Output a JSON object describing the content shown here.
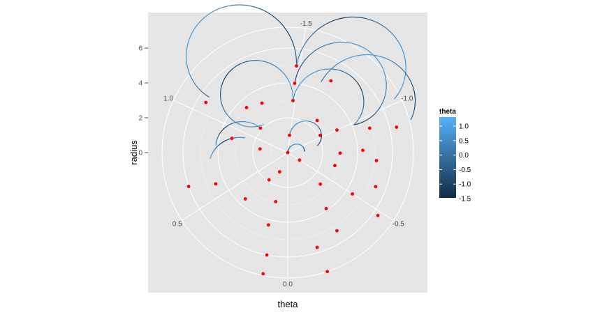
{
  "chart_data": {
    "type": "line",
    "coord": "polar",
    "xlabel": "theta",
    "ylabel": "radius",
    "radius_ticks": [
      "0",
      "2",
      "4",
      "6"
    ],
    "theta_ticks": [
      "-1.5",
      "-1.0",
      "-0.5",
      "0.0",
      "0.5",
      "1.0"
    ],
    "theta_range": [
      -1.57,
      1.57
    ],
    "radius_range": [
      0,
      7.5
    ],
    "grid": true,
    "legend": {
      "title": "theta",
      "placement": "right",
      "labels": [
        "1.0",
        "0.5",
        "0.0",
        "-0.5",
        "-1.0",
        "-1.5"
      ],
      "color_low": "#132B43",
      "color_high": "#56B1F7"
    },
    "colors": {
      "panel": "#e5e5e5",
      "grid": "#ffffff",
      "point": "#ff0000"
    },
    "spirals": [
      {
        "start_radius": 0.0,
        "start_theta": 0.0,
        "turn": "cw",
        "end_angle_deg": 170
      },
      {
        "start_radius": 1.0,
        "start_theta": -1.52,
        "turn": "cw",
        "end_angle_deg": 215
      },
      {
        "start_radius": 3.0,
        "start_theta": -1.52,
        "turn": "cw",
        "end_angle_deg": 215
      },
      {
        "start_radius": 3.0,
        "start_theta": -1.52,
        "turn": "ccw",
        "end_angle_deg": 295
      },
      {
        "start_radius": 5.0,
        "start_theta": -1.52,
        "turn": "cw",
        "end_angle_deg": 210
      },
      {
        "start_radius": 5.0,
        "start_theta": -1.52,
        "turn": "ccw",
        "end_angle_deg": 240
      },
      {
        "start_radius": 4.0,
        "start_theta": -1.52,
        "turn": "cw",
        "end_angle_deg": 250
      },
      {
        "start_radius": 4.5,
        "start_theta": -1.35,
        "turn": "cw",
        "end_angle_deg": 175
      },
      {
        "start_radius": 2.2,
        "start_theta": 1.15,
        "turn": "ccw",
        "end_angle_deg": 120
      },
      {
        "start_radius": 2.6,
        "start_theta": 0.95,
        "turn": "ccw",
        "end_angle_deg": 80
      }
    ],
    "points": [
      {
        "r": 0.0,
        "theta": 0.0
      },
      {
        "r": 1.0,
        "theta": -1.52
      },
      {
        "r": 3.0,
        "theta": -1.52
      },
      {
        "r": 4.0,
        "theta": -1.52
      },
      {
        "r": 5.0,
        "theta": -1.52
      },
      {
        "r": 4.8,
        "theta": -1.3
      },
      {
        "r": 2.5,
        "theta": -1.2
      },
      {
        "r": 2.1,
        "theta": -1.03
      },
      {
        "r": 3.1,
        "theta": -1.0
      },
      {
        "r": 4.9,
        "theta": -0.93
      },
      {
        "r": 6.4,
        "theta": -0.9
      },
      {
        "r": 3.0,
        "theta": -0.78
      },
      {
        "r": 4.3,
        "theta": -0.8
      },
      {
        "r": 5.1,
        "theta": -0.74
      },
      {
        "r": 2.8,
        "theta": -0.65
      },
      {
        "r": 5.4,
        "theta": -0.6
      },
      {
        "r": 4.4,
        "theta": -0.5
      },
      {
        "r": 6.3,
        "theta": -0.48
      },
      {
        "r": 0.8,
        "theta": -0.5
      },
      {
        "r": 2.6,
        "theta": -0.4
      },
      {
        "r": 3.9,
        "theta": -0.3
      },
      {
        "r": 5.3,
        "theta": -0.28
      },
      {
        "r": 5.7,
        "theta": -0.15
      },
      {
        "r": 7.2,
        "theta": -0.16
      },
      {
        "r": 1.2,
        "theta": 0.2
      },
      {
        "r": 2.9,
        "theta": 0.12
      },
      {
        "r": 4.3,
        "theta": 0.13
      },
      {
        "r": 6.0,
        "theta": 0.1
      },
      {
        "r": 7.1,
        "theta": 0.1
      },
      {
        "r": 1.9,
        "theta": 0.3
      },
      {
        "r": 3.6,
        "theta": 0.37
      },
      {
        "r": 4.5,
        "theta": 0.58
      },
      {
        "r": 6.0,
        "theta": 0.62
      },
      {
        "r": 1.6,
        "theta": 0.85
      },
      {
        "r": 3.3,
        "theta": 0.91
      },
      {
        "r": 2.1,
        "theta": 1.15
      },
      {
        "r": 3.2,
        "theta": 1.33
      },
      {
        "r": 3.5,
        "theta": 1.2
      },
      {
        "r": 5.5,
        "theta": 1.06
      }
    ]
  }
}
